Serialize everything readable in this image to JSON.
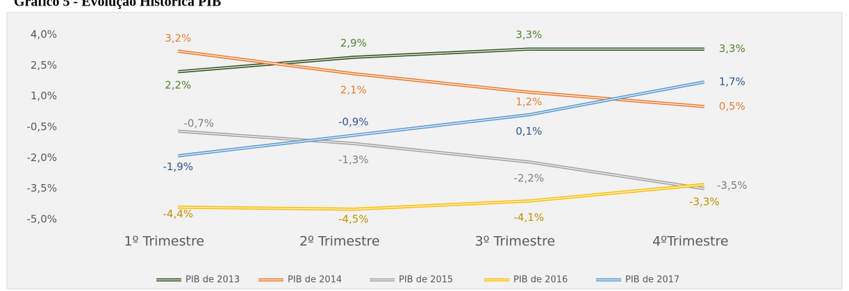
{
  "chart_data": {
    "type": "line",
    "title": "Gráfico 5 - Evolução Histórica PIB",
    "categories": [
      "1º Trimestre",
      "2º Trimestre",
      "3º Trimestre",
      "4ºTrimestre"
    ],
    "series": [
      {
        "name": "PIB de 2013",
        "color": "#375623",
        "label_color": "#548235",
        "values": [
          2.2,
          2.9,
          3.3,
          3.3
        ],
        "value_labels": [
          "2,2%",
          "2,9%",
          "3,3%",
          "3,3%"
        ]
      },
      {
        "name": "PIB de 2014",
        "color": "#ed7d31",
        "label_color": "#ed7d31",
        "values": [
          3.2,
          2.1,
          1.2,
          0.5
        ],
        "value_labels": [
          "3,2%",
          "2,1%",
          "1,2%",
          "0,5%"
        ]
      },
      {
        "name": "PIB de 2015",
        "color": "#a5a5a5",
        "label_color": "#7f7f7f",
        "values": [
          -0.7,
          -1.3,
          -2.2,
          -3.5
        ],
        "value_labels": [
          "-0,7%",
          "-1,3%",
          "-2,2%",
          "-3,5%"
        ]
      },
      {
        "name": "PIB de 2016",
        "color": "#ffc000",
        "label_color": "#bf9000",
        "values": [
          -4.4,
          -4.5,
          -4.1,
          -3.3
        ],
        "value_labels": [
          "-4,4%",
          "-4,5%",
          "-4,1%",
          "-3,3%"
        ]
      },
      {
        "name": "PIB de 2017",
        "color": "#5b9bd5",
        "label_color": "#2f5597",
        "values": [
          -1.9,
          -0.9,
          0.1,
          1.7
        ],
        "value_labels": [
          "-1,9%",
          "-0,9%",
          "0,1%",
          "1,7%"
        ]
      }
    ],
    "ylim": [
      -5.0,
      4.0
    ],
    "yticks": [
      {
        "value": -5.0,
        "label": "-5,0%"
      },
      {
        "value": -3.5,
        "label": "-3,5%"
      },
      {
        "value": -2.0,
        "label": "-2,0%"
      },
      {
        "value": -0.5,
        "label": "-0,5%"
      },
      {
        "value": 1.0,
        "label": "1,0%"
      },
      {
        "value": 2.5,
        "label": "2,5%"
      },
      {
        "value": 4.0,
        "label": "4,0%"
      }
    ],
    "grid": false,
    "legend": "bottom"
  }
}
